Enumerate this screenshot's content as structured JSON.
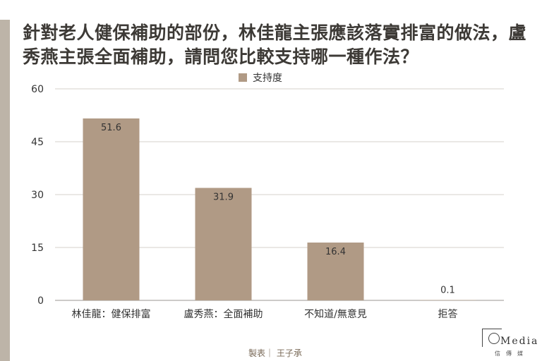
{
  "title": "針對老人健保補助的部份，林佳龍主張應該落實排富的做法，盧秀燕主張全面補助，請問您比較支持哪一種作法？",
  "credit": "製表｜ 王子承",
  "logo": {
    "text": "Media",
    "sub": "信傳媒"
  },
  "colors": {
    "bar": "#b09a85",
    "grid": "#d4d0cb",
    "text": "#333333"
  },
  "chart_data": {
    "type": "bar",
    "categories": [
      "林佳龍：健保排富",
      "盧秀燕：全面補助",
      "不知道/無意見",
      "拒答"
    ],
    "series": [
      {
        "name": "支持度",
        "values": [
          51.6,
          31.9,
          16.4,
          0.1
        ]
      }
    ],
    "data_labels": [
      "51.6",
      "31.9",
      "16.4",
      "0.1"
    ],
    "title": "",
    "xlabel": "",
    "ylabel": "",
    "ylim": [
      0,
      60
    ],
    "yticks": [
      0,
      15,
      30,
      45,
      60
    ],
    "ytick_labels": [
      "0",
      "15",
      "30",
      "45",
      "60"
    ],
    "grid": true,
    "legend": "top-center"
  }
}
